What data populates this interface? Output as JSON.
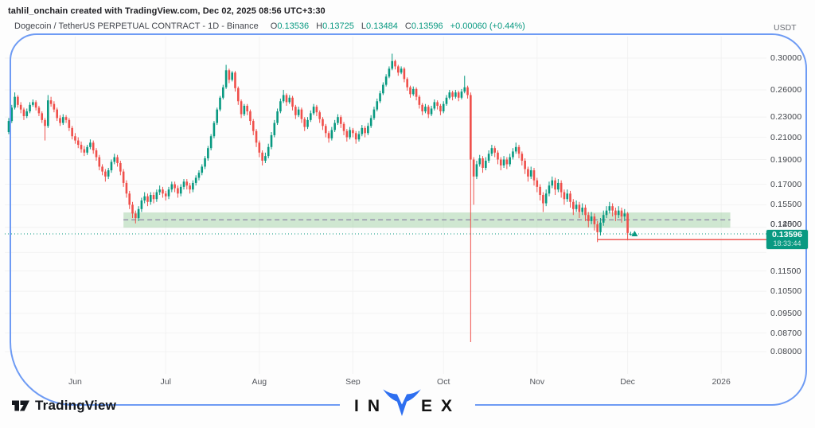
{
  "attribution": "tahlil_onchain created with TradingView.com, Dec 02, 2025 08:56 UTC+3:30",
  "header": {
    "title": "Dogecoin / TetherUS PERPETUAL CONTRACT - 1D - Binance",
    "o_label": "O",
    "o_value": "0.13536",
    "h_label": "H",
    "h_value": "0.13725",
    "l_label": "L",
    "l_value": "0.13484",
    "c_label": "C",
    "c_value": "0.13596",
    "change": "+0.00060 (+0.44%)"
  },
  "price_axis": {
    "currency": "USDT",
    "ticks": [
      "0.30000",
      "0.26000",
      "0.23000",
      "0.21000",
      "0.19000",
      "0.17000",
      "0.15500",
      "0.14000",
      "0.12500",
      "0.11500",
      "0.10500",
      "0.09500",
      "0.08700",
      "0.08000"
    ],
    "badge": {
      "price": "0.13596",
      "countdown": "18:33:44"
    }
  },
  "time_axis": {
    "labels": [
      {
        "text": "Jun",
        "index": 22
      },
      {
        "text": "Jul",
        "index": 52
      },
      {
        "text": "Aug",
        "index": 83
      },
      {
        "text": "Sep",
        "index": 114
      },
      {
        "text": "Oct",
        "index": 144
      },
      {
        "text": "Nov",
        "index": 175
      },
      {
        "text": "Dec",
        "index": 205
      },
      {
        "text": "2026",
        "index": 236
      }
    ]
  },
  "chart_data": {
    "type": "candlestick",
    "title": "Dogecoin / TetherUS PERPETUAL CONTRACT",
    "interval": "1D",
    "exchange": "Binance",
    "scale": "logarithmic",
    "ylim": [
      0.076,
      0.32
    ],
    "grid": true,
    "last": {
      "open": 0.13536,
      "high": 0.13725,
      "low": 0.13484,
      "close": 0.13596,
      "change": 0.0006,
      "change_pct": 0.44
    },
    "support_zone": {
      "start_index": 38,
      "end_index": 239,
      "price_top": 0.1497,
      "price_bottom": 0.1398,
      "mid_price": 0.1448
    },
    "last_price_line": {
      "price": 0.13596
    },
    "support_ray": {
      "start_index": 195,
      "price": 0.1325
    },
    "candles": [
      [
        0.215,
        0.229,
        0.213,
        0.226
      ],
      [
        0.226,
        0.243,
        0.224,
        0.24
      ],
      [
        0.24,
        0.257,
        0.238,
        0.252
      ],
      [
        0.252,
        0.254,
        0.24,
        0.243
      ],
      [
        0.243,
        0.246,
        0.234,
        0.238
      ],
      [
        0.238,
        0.24,
        0.227,
        0.231
      ],
      [
        0.231,
        0.239,
        0.229,
        0.236
      ],
      [
        0.236,
        0.246,
        0.234,
        0.243
      ],
      [
        0.243,
        0.249,
        0.241,
        0.246
      ],
      [
        0.246,
        0.248,
        0.237,
        0.24
      ],
      [
        0.24,
        0.242,
        0.231,
        0.234
      ],
      [
        0.234,
        0.236,
        0.224,
        0.227
      ],
      [
        0.227,
        0.229,
        0.207,
        0.221
      ],
      [
        0.221,
        0.254,
        0.219,
        0.248
      ],
      [
        0.248,
        0.252,
        0.241,
        0.244
      ],
      [
        0.244,
        0.247,
        0.235,
        0.238
      ],
      [
        0.238,
        0.24,
        0.226,
        0.229
      ],
      [
        0.229,
        0.232,
        0.221,
        0.224
      ],
      [
        0.224,
        0.233,
        0.222,
        0.23
      ],
      [
        0.23,
        0.232,
        0.224,
        0.227
      ],
      [
        0.227,
        0.229,
        0.216,
        0.219
      ],
      [
        0.219,
        0.221,
        0.208,
        0.211
      ],
      [
        0.211,
        0.214,
        0.204,
        0.207
      ],
      [
        0.207,
        0.21,
        0.2,
        0.203
      ],
      [
        0.203,
        0.206,
        0.196,
        0.199
      ],
      [
        0.199,
        0.202,
        0.193,
        0.196
      ],
      [
        0.196,
        0.203,
        0.194,
        0.201
      ],
      [
        0.201,
        0.208,
        0.199,
        0.205
      ],
      [
        0.205,
        0.207,
        0.195,
        0.198
      ],
      [
        0.198,
        0.2,
        0.189,
        0.192
      ],
      [
        0.192,
        0.194,
        0.181,
        0.184
      ],
      [
        0.184,
        0.186,
        0.177,
        0.18
      ],
      [
        0.18,
        0.182,
        0.172,
        0.176
      ],
      [
        0.176,
        0.183,
        0.174,
        0.181
      ],
      [
        0.181,
        0.19,
        0.179,
        0.188
      ],
      [
        0.188,
        0.195,
        0.186,
        0.192
      ],
      [
        0.192,
        0.194,
        0.184,
        0.187
      ],
      [
        0.187,
        0.189,
        0.177,
        0.18
      ],
      [
        0.18,
        0.182,
        0.168,
        0.171
      ],
      [
        0.171,
        0.173,
        0.16,
        0.163
      ],
      [
        0.163,
        0.165,
        0.152,
        0.155
      ],
      [
        0.155,
        0.157,
        0.146,
        0.149
      ],
      [
        0.149,
        0.151,
        0.1425,
        0.146
      ],
      [
        0.146,
        0.154,
        0.144,
        0.152
      ],
      [
        0.152,
        0.16,
        0.15,
        0.158
      ],
      [
        0.158,
        0.164,
        0.156,
        0.161
      ],
      [
        0.161,
        0.163,
        0.154,
        0.157
      ],
      [
        0.157,
        0.164,
        0.155,
        0.162
      ],
      [
        0.162,
        0.164,
        0.156,
        0.159
      ],
      [
        0.159,
        0.166,
        0.157,
        0.164
      ],
      [
        0.164,
        0.169,
        0.162,
        0.166
      ],
      [
        0.166,
        0.168,
        0.16,
        0.163
      ],
      [
        0.163,
        0.165,
        0.158,
        0.161
      ],
      [
        0.161,
        0.168,
        0.159,
        0.166
      ],
      [
        0.166,
        0.172,
        0.164,
        0.17
      ],
      [
        0.17,
        0.172,
        0.164,
        0.167
      ],
      [
        0.167,
        0.169,
        0.16,
        0.163
      ],
      [
        0.163,
        0.17,
        0.161,
        0.168
      ],
      [
        0.168,
        0.174,
        0.166,
        0.172
      ],
      [
        0.172,
        0.174,
        0.166,
        0.169
      ],
      [
        0.169,
        0.171,
        0.163,
        0.166
      ],
      [
        0.166,
        0.173,
        0.164,
        0.171
      ],
      [
        0.171,
        0.177,
        0.169,
        0.175
      ],
      [
        0.175,
        0.181,
        0.173,
        0.179
      ],
      [
        0.179,
        0.186,
        0.177,
        0.184
      ],
      [
        0.184,
        0.193,
        0.182,
        0.191
      ],
      [
        0.191,
        0.202,
        0.189,
        0.2
      ],
      [
        0.2,
        0.213,
        0.198,
        0.211
      ],
      [
        0.211,
        0.226,
        0.209,
        0.224
      ],
      [
        0.224,
        0.24,
        0.222,
        0.238
      ],
      [
        0.238,
        0.253,
        0.236,
        0.251
      ],
      [
        0.251,
        0.266,
        0.249,
        0.263
      ],
      [
        0.263,
        0.291,
        0.261,
        0.284
      ],
      [
        0.284,
        0.286,
        0.268,
        0.272
      ],
      [
        0.272,
        0.283,
        0.27,
        0.281
      ],
      [
        0.281,
        0.283,
        0.258,
        0.262
      ],
      [
        0.262,
        0.264,
        0.243,
        0.247
      ],
      [
        0.247,
        0.249,
        0.229,
        0.233
      ],
      [
        0.233,
        0.244,
        0.231,
        0.242
      ],
      [
        0.242,
        0.244,
        0.232,
        0.236
      ],
      [
        0.236,
        0.238,
        0.222,
        0.226
      ],
      [
        0.226,
        0.228,
        0.212,
        0.216
      ],
      [
        0.216,
        0.218,
        0.201,
        0.205
      ],
      [
        0.205,
        0.207,
        0.192,
        0.196
      ],
      [
        0.196,
        0.198,
        0.185,
        0.189
      ],
      [
        0.189,
        0.196,
        0.187,
        0.193
      ],
      [
        0.193,
        0.204,
        0.191,
        0.201
      ],
      [
        0.201,
        0.215,
        0.199,
        0.212
      ],
      [
        0.212,
        0.227,
        0.21,
        0.224
      ],
      [
        0.224,
        0.239,
        0.222,
        0.236
      ],
      [
        0.236,
        0.25,
        0.234,
        0.247
      ],
      [
        0.247,
        0.26,
        0.245,
        0.254
      ],
      [
        0.254,
        0.256,
        0.242,
        0.246
      ],
      [
        0.246,
        0.254,
        0.244,
        0.251
      ],
      [
        0.251,
        0.253,
        0.237,
        0.241
      ],
      [
        0.241,
        0.243,
        0.228,
        0.232
      ],
      [
        0.232,
        0.241,
        0.23,
        0.238
      ],
      [
        0.238,
        0.24,
        0.224,
        0.228
      ],
      [
        0.228,
        0.23,
        0.216,
        0.22
      ],
      [
        0.22,
        0.23,
        0.218,
        0.227
      ],
      [
        0.227,
        0.237,
        0.225,
        0.234
      ],
      [
        0.234,
        0.244,
        0.232,
        0.241
      ],
      [
        0.241,
        0.243,
        0.231,
        0.235
      ],
      [
        0.235,
        0.237,
        0.224,
        0.228
      ],
      [
        0.228,
        0.23,
        0.217,
        0.221
      ],
      [
        0.221,
        0.223,
        0.21,
        0.214
      ],
      [
        0.214,
        0.216,
        0.205,
        0.209
      ],
      [
        0.209,
        0.22,
        0.207,
        0.217
      ],
      [
        0.217,
        0.227,
        0.215,
        0.224
      ],
      [
        0.224,
        0.233,
        0.222,
        0.23
      ],
      [
        0.23,
        0.232,
        0.219,
        0.223
      ],
      [
        0.223,
        0.225,
        0.212,
        0.216
      ],
      [
        0.216,
        0.218,
        0.206,
        0.21
      ],
      [
        0.21,
        0.22,
        0.208,
        0.217
      ],
      [
        0.217,
        0.219,
        0.21,
        0.214
      ],
      [
        0.214,
        0.216,
        0.204,
        0.208
      ],
      [
        0.208,
        0.216,
        0.206,
        0.213
      ],
      [
        0.213,
        0.222,
        0.211,
        0.219
      ],
      [
        0.219,
        0.221,
        0.21,
        0.214
      ],
      [
        0.214,
        0.224,
        0.212,
        0.221
      ],
      [
        0.221,
        0.232,
        0.219,
        0.229
      ],
      [
        0.229,
        0.241,
        0.227,
        0.238
      ],
      [
        0.238,
        0.25,
        0.236,
        0.247
      ],
      [
        0.247,
        0.259,
        0.245,
        0.256
      ],
      [
        0.256,
        0.269,
        0.254,
        0.266
      ],
      [
        0.266,
        0.279,
        0.264,
        0.276
      ],
      [
        0.276,
        0.289,
        0.274,
        0.286
      ],
      [
        0.286,
        0.306,
        0.284,
        0.296
      ],
      [
        0.296,
        0.298,
        0.285,
        0.289
      ],
      [
        0.289,
        0.291,
        0.277,
        0.281
      ],
      [
        0.281,
        0.289,
        0.279,
        0.286
      ],
      [
        0.286,
        0.288,
        0.269,
        0.273
      ],
      [
        0.273,
        0.275,
        0.259,
        0.263
      ],
      [
        0.263,
        0.265,
        0.251,
        0.255
      ],
      [
        0.255,
        0.264,
        0.253,
        0.261
      ],
      [
        0.261,
        0.263,
        0.248,
        0.252
      ],
      [
        0.252,
        0.254,
        0.239,
        0.243
      ],
      [
        0.243,
        0.245,
        0.232,
        0.236
      ],
      [
        0.236,
        0.244,
        0.234,
        0.241
      ],
      [
        0.241,
        0.243,
        0.229,
        0.233
      ],
      [
        0.233,
        0.242,
        0.231,
        0.239
      ],
      [
        0.239,
        0.249,
        0.237,
        0.246
      ],
      [
        0.246,
        0.248,
        0.238,
        0.242
      ],
      [
        0.242,
        0.244,
        0.232,
        0.236
      ],
      [
        0.236,
        0.247,
        0.234,
        0.244
      ],
      [
        0.244,
        0.254,
        0.242,
        0.251
      ],
      [
        0.251,
        0.26,
        0.249,
        0.257
      ],
      [
        0.257,
        0.259,
        0.248,
        0.252
      ],
      [
        0.252,
        0.26,
        0.25,
        0.257
      ],
      [
        0.257,
        0.259,
        0.247,
        0.251
      ],
      [
        0.251,
        0.261,
        0.249,
        0.258
      ],
      [
        0.258,
        0.277,
        0.256,
        0.263
      ],
      [
        0.263,
        0.265,
        0.25,
        0.254
      ],
      [
        0.254,
        0.257,
        0.0835,
        0.19
      ],
      [
        0.19,
        0.192,
        0.155,
        0.176
      ],
      [
        0.176,
        0.189,
        0.174,
        0.186
      ],
      [
        0.186,
        0.194,
        0.184,
        0.191
      ],
      [
        0.191,
        0.193,
        0.179,
        0.183
      ],
      [
        0.183,
        0.192,
        0.181,
        0.189
      ],
      [
        0.189,
        0.198,
        0.187,
        0.195
      ],
      [
        0.195,
        0.203,
        0.193,
        0.2
      ],
      [
        0.2,
        0.202,
        0.192,
        0.196
      ],
      [
        0.196,
        0.198,
        0.186,
        0.19
      ],
      [
        0.19,
        0.192,
        0.181,
        0.185
      ],
      [
        0.185,
        0.193,
        0.183,
        0.19
      ],
      [
        0.19,
        0.192,
        0.182,
        0.186
      ],
      [
        0.186,
        0.195,
        0.184,
        0.192
      ],
      [
        0.192,
        0.2,
        0.19,
        0.197
      ],
      [
        0.197,
        0.205,
        0.195,
        0.201
      ],
      [
        0.201,
        0.203,
        0.191,
        0.195
      ],
      [
        0.195,
        0.197,
        0.185,
        0.189
      ],
      [
        0.189,
        0.191,
        0.178,
        0.182
      ],
      [
        0.182,
        0.184,
        0.172,
        0.176
      ],
      [
        0.176,
        0.184,
        0.174,
        0.181
      ],
      [
        0.181,
        0.183,
        0.169,
        0.173
      ],
      [
        0.173,
        0.175,
        0.164,
        0.168
      ],
      [
        0.168,
        0.17,
        0.158,
        0.162
      ],
      [
        0.162,
        0.164,
        0.15,
        0.156
      ],
      [
        0.156,
        0.166,
        0.154,
        0.163
      ],
      [
        0.163,
        0.172,
        0.161,
        0.169
      ],
      [
        0.169,
        0.176,
        0.167,
        0.173
      ],
      [
        0.173,
        0.175,
        0.162,
        0.166
      ],
      [
        0.166,
        0.174,
        0.164,
        0.171
      ],
      [
        0.171,
        0.173,
        0.16,
        0.164
      ],
      [
        0.164,
        0.166,
        0.155,
        0.159
      ],
      [
        0.159,
        0.166,
        0.157,
        0.163
      ],
      [
        0.163,
        0.165,
        0.153,
        0.157
      ],
      [
        0.157,
        0.159,
        0.148,
        0.152
      ],
      [
        0.152,
        0.158,
        0.15,
        0.155
      ],
      [
        0.155,
        0.157,
        0.146,
        0.15
      ],
      [
        0.15,
        0.156,
        0.148,
        0.153
      ],
      [
        0.153,
        0.155,
        0.144,
        0.148
      ],
      [
        0.148,
        0.15,
        0.14,
        0.144
      ],
      [
        0.144,
        0.15,
        0.142,
        0.147
      ],
      [
        0.147,
        0.149,
        0.138,
        0.142
      ],
      [
        0.142,
        0.144,
        0.131,
        0.137
      ],
      [
        0.137,
        0.146,
        0.135,
        0.143
      ],
      [
        0.143,
        0.151,
        0.141,
        0.148
      ],
      [
        0.148,
        0.154,
        0.146,
        0.151
      ],
      [
        0.151,
        0.157,
        0.149,
        0.154
      ],
      [
        0.154,
        0.156,
        0.147,
        0.151
      ],
      [
        0.151,
        0.153,
        0.144,
        0.148
      ],
      [
        0.148,
        0.154,
        0.146,
        0.151
      ],
      [
        0.151,
        0.153,
        0.143,
        0.147
      ],
      [
        0.147,
        0.152,
        0.144,
        0.149
      ],
      [
        0.149,
        0.15,
        0.132,
        0.1365
      ],
      [
        0.13536,
        0.13725,
        0.13484,
        0.13596
      ]
    ]
  },
  "branding": {
    "tradingview": "TradingView",
    "invex_left": "IN",
    "invex_right": "EX"
  },
  "colors": {
    "up": "#089981",
    "down": "#ef4f4a",
    "zone_fill": "rgba(103,183,110,0.30)",
    "zone_line": "#80719c",
    "ray": "#ef5350",
    "last_line": "#089981",
    "frame": "#6e9bf4",
    "badge_bg": "#089981",
    "grid": "#f2f2f2",
    "bull": "#2e6ff0"
  }
}
